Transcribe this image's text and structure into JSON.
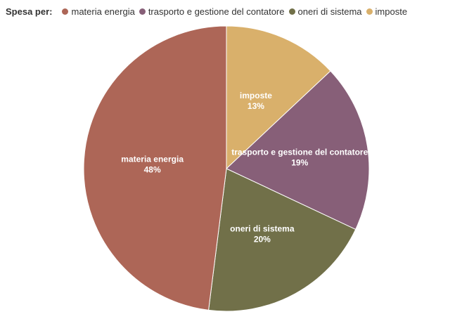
{
  "chart_data": {
    "type": "pie",
    "legend_title": "Spesa per:",
    "legend_position": "top-left",
    "slices": [
      {
        "label": "materia energia",
        "value": 48,
        "value_label": "48%",
        "color": "#ad6657"
      },
      {
        "label": "trasporto e gestione del contatore",
        "value": 19,
        "value_label": "19%",
        "color": "#875f78"
      },
      {
        "label": "oneri di sistema",
        "value": 20,
        "value_label": "20%",
        "color": "#717049"
      },
      {
        "label": "imposte",
        "value": 13,
        "value_label": "13%",
        "color": "#d9b06b"
      }
    ],
    "draw_order": [
      "imposte",
      "trasporto e gestione del contatore",
      "oneri di sistema",
      "materia energia"
    ]
  }
}
